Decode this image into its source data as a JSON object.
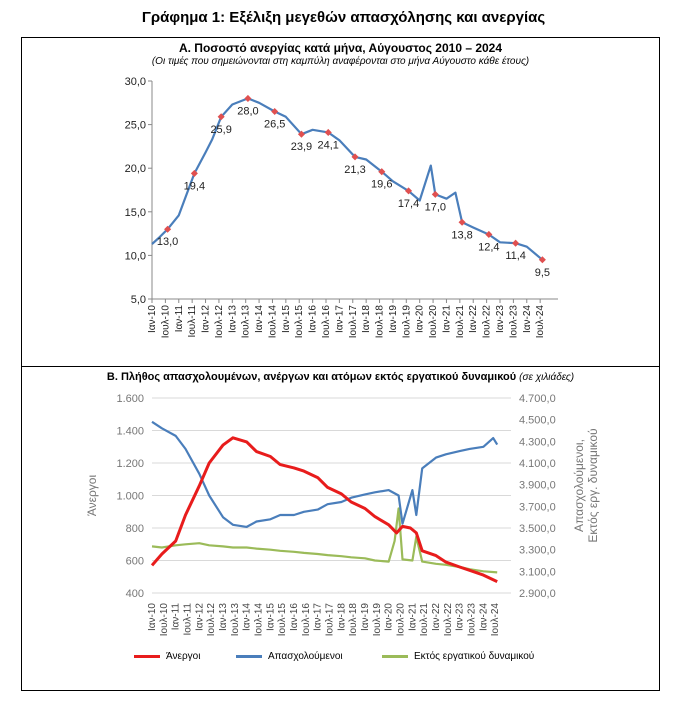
{
  "page_title": "Γράφημα 1: Εξέλιξη μεγεθών απασχόλησης και ανεργίας",
  "panel_a": {
    "title": "Α. Ποσοστό ανεργίας κατά μήνα, Αύγουστος 2010 – 2024",
    "subtitle": "(Οι τιμές που σημειώνονται στη καμπύλη αναφέρονται στο μήνα Αύγουστο κάθε έτους)"
  },
  "panel_b": {
    "title": "Β. Πλήθος απασχολουμένων, ανέργων και ατόμων εκτός εργατικού δυναμικού",
    "title_note": "(σε χιλιάδες)"
  },
  "colors": {
    "rate": "#4a7ebb",
    "marker": "#e05050",
    "unemployed": "#e81c1c",
    "employed": "#4a7ebb",
    "inactive": "#9bbb59"
  },
  "chart_data": [
    {
      "type": "line",
      "x_ticks": [
        "Ιαν-10",
        "Ιουλ-10",
        "Ιαν-11",
        "Ιουλ-11",
        "Ιαν-12",
        "Ιουλ-12",
        "Ιαν-13",
        "Ιουλ-13",
        "Ιαν-14",
        "Ιουλ-14",
        "Ιαν-15",
        "Ιουλ-15",
        "Ιαν-16",
        "Ιουλ-16",
        "Ιαν-17",
        "Ιουλ-17",
        "Ιαν-18",
        "Ιουλ-18",
        "Ιαν-19",
        "Ιουλ-19",
        "Ιαν-20",
        "Ιουλ-20",
        "Ιαν-21",
        "Ιουλ-21",
        "Ιαν-22",
        "Ιουλ-22",
        "Ιαν-23",
        "Ιουλ-23",
        "Ιαν-24",
        "Ιουλ-24"
      ],
      "y_ticks": [
        "5,0",
        "10,0",
        "15,0",
        "20,0",
        "25,0",
        "30,0"
      ],
      "ylim": [
        5,
        30
      ],
      "grid": false,
      "series": [
        {
          "x": [
            "2010-01",
            "2010-04",
            "2010-08",
            "2011-01",
            "2011-08",
            "2012-01",
            "2012-04",
            "2012-08",
            "2013-01",
            "2013-08",
            "2014-01",
            "2014-08",
            "2015-01",
            "2015-08",
            "2016-01",
            "2016-08",
            "2017-01",
            "2017-08",
            "2018-01",
            "2018-08",
            "2019-01",
            "2019-08",
            "2020-01",
            "2020-06",
            "2020-08",
            "2021-01",
            "2021-05",
            "2021-08",
            "2022-01",
            "2022-08",
            "2023-01",
            "2023-08",
            "2024-01",
            "2024-08"
          ],
          "y": [
            11.3,
            12.0,
            13.0,
            14.6,
            19.4,
            21.8,
            23.3,
            25.9,
            27.3,
            28.0,
            27.5,
            26.5,
            25.9,
            23.9,
            24.4,
            24.1,
            23.2,
            21.3,
            21.0,
            19.6,
            18.5,
            17.4,
            16.3,
            20.3,
            17.0,
            16.5,
            17.2,
            13.8,
            13.2,
            12.4,
            11.5,
            11.4,
            11.0,
            9.5
          ]
        }
      ],
      "labels": [
        {
          "x": "2010-08",
          "y": 13.0,
          "text": "13,0"
        },
        {
          "x": "2011-08",
          "y": 19.4,
          "text": "19,4"
        },
        {
          "x": "2012-08",
          "y": 25.9,
          "text": "25,9"
        },
        {
          "x": "2013-08",
          "y": 28.0,
          "text": "28,0"
        },
        {
          "x": "2014-08",
          "y": 26.5,
          "text": "26,5"
        },
        {
          "x": "2015-08",
          "y": 23.9,
          "text": "23,9"
        },
        {
          "x": "2016-08",
          "y": 24.1,
          "text": "24,1"
        },
        {
          "x": "2017-08",
          "y": 21.3,
          "text": "21,3"
        },
        {
          "x": "2018-08",
          "y": 19.6,
          "text": "19,6"
        },
        {
          "x": "2019-08",
          "y": 17.4,
          "text": "17,4"
        },
        {
          "x": "2020-08",
          "y": 17.0,
          "text": "17,0"
        },
        {
          "x": "2021-08",
          "y": 13.8,
          "text": "13,8"
        },
        {
          "x": "2022-08",
          "y": 12.4,
          "text": "12,4"
        },
        {
          "x": "2023-08",
          "y": 11.4,
          "text": "11,4"
        },
        {
          "x": "2024-08",
          "y": 9.5,
          "text": "9,5"
        }
      ]
    },
    {
      "type": "line",
      "x_ticks": [
        "Ιαν-10",
        "Ιουλ-10",
        "Ιαν-11",
        "Ιουλ-11",
        "Ιαν-12",
        "Ιουλ-12",
        "Ιαν-13",
        "Ιουλ-13",
        "Ιαν-14",
        "Ιουλ-14",
        "Ιαν-15",
        "Ιουλ-15",
        "Ιαν-16",
        "Ιουλ-16",
        "Ιαν-17",
        "Ιουλ-17",
        "Ιαν-18",
        "Ιουλ-18",
        "Ιαν-19",
        "Ιουλ-19",
        "Ιαν-20",
        "Ιουλ-20",
        "Ιαν-21",
        "Ιουλ-21",
        "Ιαν-22",
        "Ιουλ-22",
        "Ιαν-23",
        "Ιουλ-23",
        "Ιαν-24",
        "Ιουλ-24"
      ],
      "ylabel": "Άνεργοι",
      "y2label": "Απασχολούμενοι,\nΕκτός εργ. δυναμικού",
      "y_ticks": [
        "400",
        "600",
        "800",
        "1.000",
        "1.200",
        "1.400",
        "1.600"
      ],
      "y2_ticks": [
        "2.900,0",
        "3.100,0",
        "3.300,0",
        "3.500,0",
        "3.700,0",
        "3.900,0",
        "4.100,0",
        "4.300,0",
        "4.500,0",
        "4.700,0"
      ],
      "ylim": [
        400,
        1600
      ],
      "y2lim": [
        2900,
        4700
      ],
      "legend_position": "bottom",
      "series": [
        {
          "name": "Άνεργοι",
          "axis": "left",
          "x": [
            "2010-01",
            "2010-06",
            "2011-01",
            "2011-06",
            "2012-01",
            "2012-06",
            "2013-01",
            "2013-06",
            "2014-01",
            "2014-06",
            "2015-01",
            "2015-06",
            "2016-01",
            "2016-06",
            "2017-01",
            "2017-06",
            "2018-01",
            "2018-06",
            "2019-01",
            "2019-06",
            "2020-01",
            "2020-05",
            "2020-08",
            "2020-12",
            "2021-03",
            "2021-06",
            "2022-01",
            "2022-06",
            "2023-01",
            "2023-06",
            "2024-01",
            "2024-08"
          ],
          "y": [
            570,
            640,
            720,
            880,
            1060,
            1200,
            1310,
            1355,
            1330,
            1270,
            1240,
            1190,
            1170,
            1150,
            1110,
            1050,
            1010,
            960,
            920,
            870,
            820,
            770,
            810,
            800,
            770,
            660,
            630,
            590,
            560,
            540,
            510,
            470
          ]
        },
        {
          "name": "Απασχολούμενοι",
          "axis": "right",
          "x": [
            "2010-01",
            "2010-06",
            "2011-01",
            "2011-06",
            "2012-01",
            "2012-06",
            "2013-01",
            "2013-06",
            "2014-01",
            "2014-06",
            "2015-01",
            "2015-06",
            "2016-01",
            "2016-06",
            "2017-01",
            "2017-06",
            "2018-01",
            "2018-06",
            "2019-01",
            "2019-06",
            "2020-01",
            "2020-06",
            "2020-08",
            "2021-01",
            "2021-03",
            "2021-06",
            "2022-01",
            "2022-06",
            "2023-01",
            "2023-06",
            "2024-01",
            "2024-06",
            "2024-08"
          ],
          "y": [
            4480,
            4420,
            4350,
            4230,
            4000,
            3800,
            3600,
            3530,
            3510,
            3560,
            3580,
            3620,
            3620,
            3650,
            3670,
            3720,
            3740,
            3780,
            3810,
            3830,
            3850,
            3800,
            3540,
            3850,
            3620,
            4050,
            4150,
            4180,
            4210,
            4230,
            4250,
            4330,
            4270
          ]
        },
        {
          "name": "Εκτός εργατικού δυναμικού",
          "axis": "right",
          "x": [
            "2010-01",
            "2010-06",
            "2011-01",
            "2011-06",
            "2012-01",
            "2012-06",
            "2013-01",
            "2013-06",
            "2014-01",
            "2014-06",
            "2015-01",
            "2015-06",
            "2016-01",
            "2016-06",
            "2017-01",
            "2017-06",
            "2018-01",
            "2018-06",
            "2019-01",
            "2019-06",
            "2020-01",
            "2020-04",
            "2020-06",
            "2020-08",
            "2021-01",
            "2021-03",
            "2021-06",
            "2022-01",
            "2022-06",
            "2023-01",
            "2023-06",
            "2024-01",
            "2024-08"
          ],
          "y": [
            3330,
            3320,
            3340,
            3350,
            3360,
            3340,
            3330,
            3320,
            3320,
            3310,
            3300,
            3290,
            3280,
            3270,
            3260,
            3250,
            3240,
            3230,
            3220,
            3200,
            3190,
            3380,
            3680,
            3210,
            3200,
            3420,
            3190,
            3170,
            3160,
            3140,
            3120,
            3100,
            3090
          ]
        }
      ]
    }
  ]
}
